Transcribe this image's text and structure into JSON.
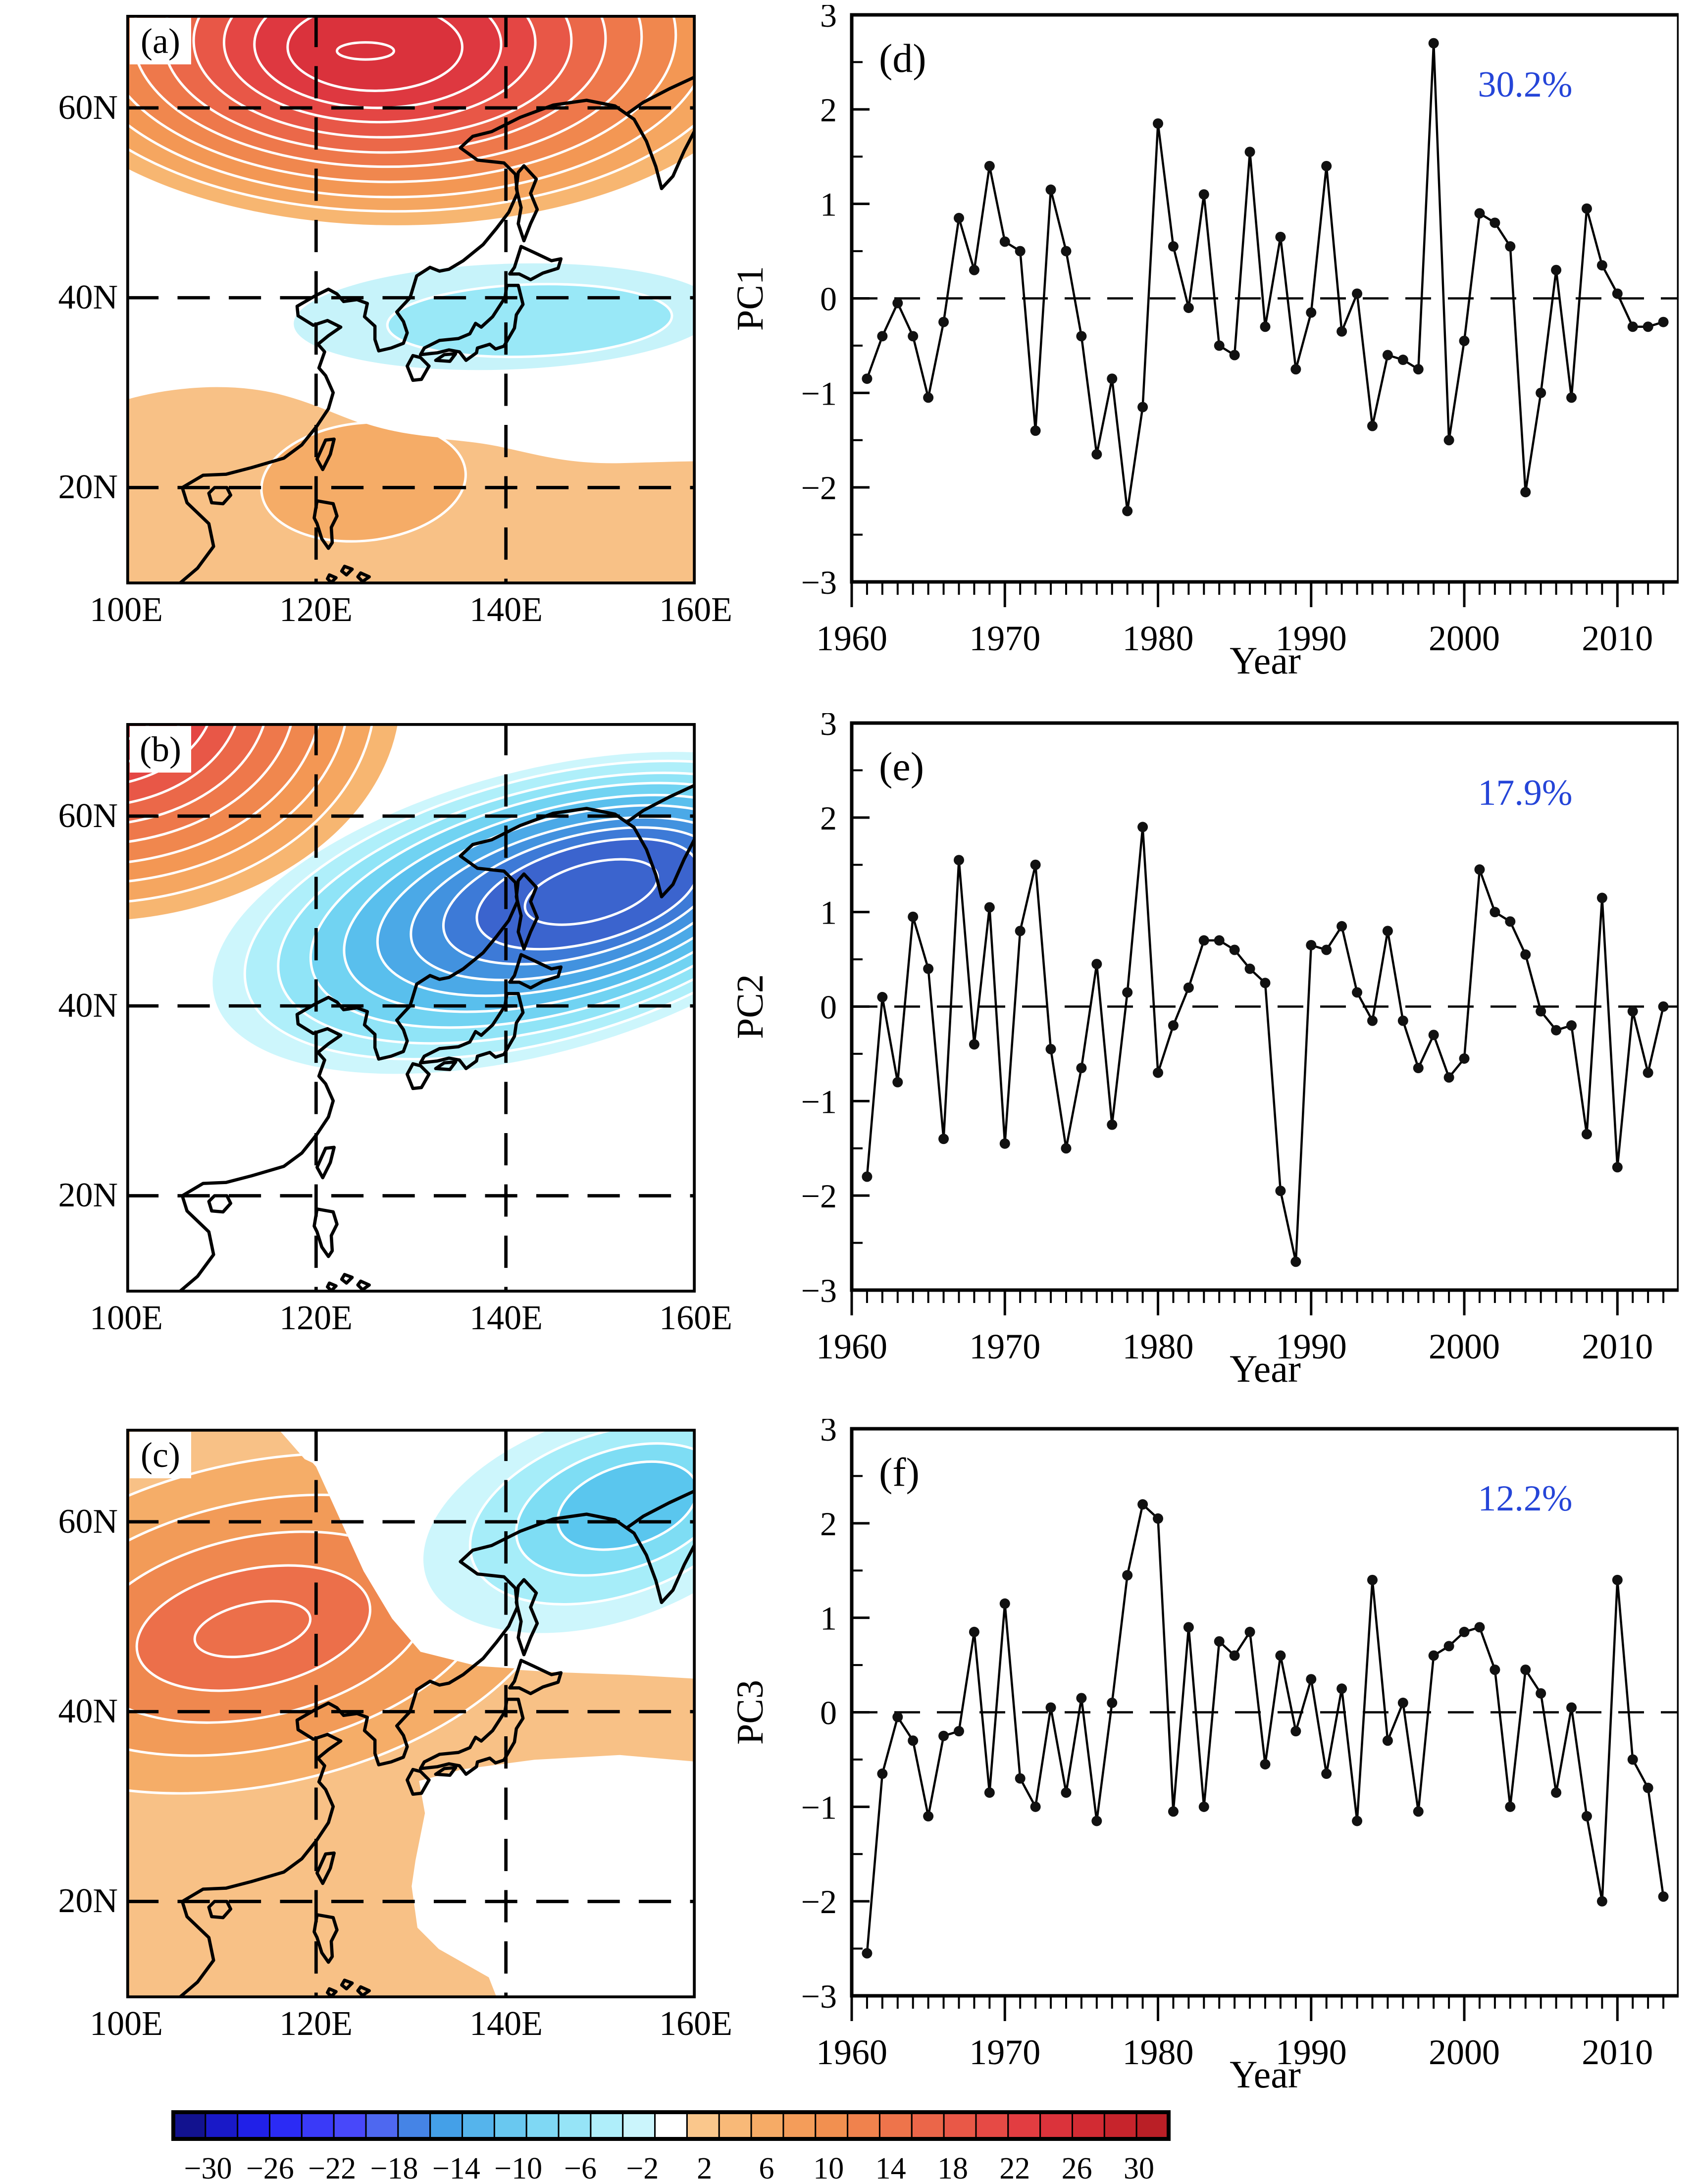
{
  "figure": {
    "xlabel": "Year",
    "accent_blue": "#2545D8",
    "ytick_labels": [
      "3",
      "2",
      "1",
      "0",
      "−1",
      "−2",
      "−3"
    ],
    "ytick_values": [
      3,
      2,
      1,
      0,
      -1,
      -2,
      -3
    ],
    "xtick_labels": [
      "1960",
      "1970",
      "1980",
      "1990",
      "2000",
      "2010"
    ],
    "xtick_values": [
      1960,
      1970,
      1980,
      1990,
      2000,
      2010
    ],
    "map_axes": {
      "lat": [
        "60N",
        "40N",
        "20N"
      ],
      "lon": [
        "100E",
        "120E",
        "140E",
        "160E"
      ]
    },
    "maps": [
      {
        "letter": "(a)",
        "pattern": "positive anomaly over far north (max near 125E,66N), negative band over Japan near 40N, weak positive south of 30N"
      },
      {
        "letter": "(b)",
        "pattern": "positive anomaly in northwest corner, strong negative center near 145E,52N over Okhotsk region"
      },
      {
        "letter": "(c)",
        "pattern": "broad positive anomaly (max near 113E,50N), negative center in northeast corner near 150E,63N"
      }
    ],
    "timeseries": [
      {
        "letter": "(d)",
        "ylabel": "PC1",
        "variance": "30.2%"
      },
      {
        "letter": "(e)",
        "ylabel": "PC2",
        "variance": "17.9%"
      },
      {
        "letter": "(f)",
        "ylabel": "PC3",
        "variance": "12.2%"
      }
    ],
    "colorbar": {
      "labels": [
        "−30",
        "−26",
        "−22",
        "−18",
        "−14",
        "−10",
        "−6",
        "−2",
        "2",
        "6",
        "10",
        "14",
        "18",
        "22",
        "26",
        "30"
      ],
      "colors": [
        "#12128F",
        "#1919C8",
        "#2020E8",
        "#2B2BF5",
        "#3A3AF8",
        "#4848FA",
        "#4E68F0",
        "#4584E6",
        "#44A0E8",
        "#55B4EC",
        "#69C8F0",
        "#7FD8F4",
        "#96E4F7",
        "#AFEEFA",
        "#CBF5FC",
        "#FFFFFF",
        "#FAC78C",
        "#F8B978",
        "#F6AB66",
        "#F49D5A",
        "#F29050",
        "#F0824D",
        "#EE744B",
        "#EB6649",
        "#E95847",
        "#E64A45",
        "#E23D41",
        "#DB333B",
        "#D22B33",
        "#C7242C",
        "#BA1F26"
      ]
    }
  },
  "chart_data": [
    {
      "type": "line",
      "title": "(d) PC1 time series",
      "xlabel": "Year",
      "ylabel": "PC1",
      "xlim": [
        1960,
        2014
      ],
      "ylim": [
        -3,
        3
      ],
      "annotation": "30.2%",
      "zero_line": true,
      "x": [
        1961,
        1962,
        1963,
        1964,
        1965,
        1966,
        1967,
        1968,
        1969,
        1970,
        1971,
        1972,
        1973,
        1974,
        1975,
        1976,
        1977,
        1978,
        1979,
        1980,
        1981,
        1982,
        1983,
        1984,
        1985,
        1986,
        1987,
        1988,
        1989,
        1990,
        1991,
        1992,
        1993,
        1994,
        1995,
        1996,
        1997,
        1998,
        1999,
        2000,
        2001,
        2002,
        2003,
        2004,
        2005,
        2006,
        2007,
        2008,
        2009,
        2010,
        2011,
        2012,
        2013
      ],
      "y": [
        -0.85,
        -0.4,
        -0.05,
        -0.4,
        -1.05,
        -0.25,
        0.85,
        0.3,
        1.4,
        0.6,
        0.5,
        -1.4,
        1.15,
        0.5,
        -0.4,
        -1.65,
        -0.85,
        -2.25,
        -1.15,
        1.85,
        0.55,
        -0.1,
        1.1,
        -0.5,
        -0.6,
        1.55,
        -0.3,
        0.65,
        -0.75,
        -0.15,
        1.4,
        -0.35,
        0.05,
        -1.35,
        -0.6,
        -0.65,
        -0.75,
        2.7,
        -1.5,
        -0.45,
        0.9,
        0.8,
        0.55,
        -2.05,
        -1.0,
        0.3,
        -1.05,
        0.95,
        0.35,
        0.05,
        -0.3,
        -0.3,
        -0.25
      ]
    },
    {
      "type": "line",
      "title": "(e) PC2 time series",
      "xlabel": "Year",
      "ylabel": "PC2",
      "xlim": [
        1960,
        2014
      ],
      "ylim": [
        -3,
        3
      ],
      "annotation": "17.9%",
      "zero_line": true,
      "x": [
        1961,
        1962,
        1963,
        1964,
        1965,
        1966,
        1967,
        1968,
        1969,
        1970,
        1971,
        1972,
        1973,
        1974,
        1975,
        1976,
        1977,
        1978,
        1979,
        1980,
        1981,
        1982,
        1983,
        1984,
        1985,
        1986,
        1987,
        1988,
        1989,
        1990,
        1991,
        1992,
        1993,
        1994,
        1995,
        1996,
        1997,
        1998,
        1999,
        2000,
        2001,
        2002,
        2003,
        2004,
        2005,
        2006,
        2007,
        2008,
        2009,
        2010,
        2011,
        2012,
        2013
      ],
      "y": [
        -1.8,
        0.1,
        -0.8,
        0.95,
        0.4,
        -1.4,
        1.55,
        -0.4,
        1.05,
        -1.45,
        0.8,
        1.5,
        -0.45,
        -1.5,
        -0.65,
        0.45,
        -1.25,
        0.15,
        1.9,
        -0.7,
        -0.2,
        0.2,
        0.7,
        0.7,
        0.6,
        0.4,
        0.25,
        -1.95,
        -2.7,
        0.65,
        0.6,
        0.85,
        0.15,
        -0.15,
        0.8,
        -0.15,
        -0.65,
        -0.3,
        -0.75,
        -0.55,
        1.45,
        1.0,
        0.9,
        0.55,
        -0.05,
        -0.25,
        -0.2,
        -1.35,
        1.15,
        -1.7,
        -0.05,
        -0.7,
        0.0
      ]
    },
    {
      "type": "line",
      "title": "(f) PC3 time series",
      "xlabel": "Year",
      "ylabel": "PC3",
      "xlim": [
        1960,
        2014
      ],
      "ylim": [
        -3,
        3
      ],
      "annotation": "12.2%",
      "zero_line": true,
      "x": [
        1961,
        1962,
        1963,
        1964,
        1965,
        1966,
        1967,
        1968,
        1969,
        1970,
        1971,
        1972,
        1973,
        1974,
        1975,
        1976,
        1977,
        1978,
        1979,
        1980,
        1981,
        1982,
        1983,
        1984,
        1985,
        1986,
        1987,
        1988,
        1989,
        1990,
        1991,
        1992,
        1993,
        1994,
        1995,
        1996,
        1997,
        1998,
        1999,
        2000,
        2001,
        2002,
        2003,
        2004,
        2005,
        2006,
        2007,
        2008,
        2009,
        2010,
        2011,
        2012,
        2013
      ],
      "y": [
        -2.55,
        -0.65,
        -0.05,
        -0.3,
        -1.1,
        -0.25,
        -0.2,
        0.85,
        -0.85,
        1.15,
        -0.7,
        -1.0,
        0.05,
        -0.85,
        0.15,
        -1.15,
        0.1,
        1.45,
        2.2,
        2.05,
        -1.05,
        0.9,
        -1.0,
        0.75,
        0.6,
        0.85,
        -0.55,
        0.6,
        -0.2,
        0.35,
        -0.65,
        0.25,
        -1.15,
        1.4,
        -0.3,
        0.1,
        -1.05,
        0.6,
        0.7,
        0.85,
        0.9,
        0.45,
        -1.0,
        0.45,
        0.2,
        -0.85,
        0.05,
        -1.1,
        -2.0,
        1.4,
        -0.5,
        -0.8,
        -1.95
      ]
    }
  ]
}
